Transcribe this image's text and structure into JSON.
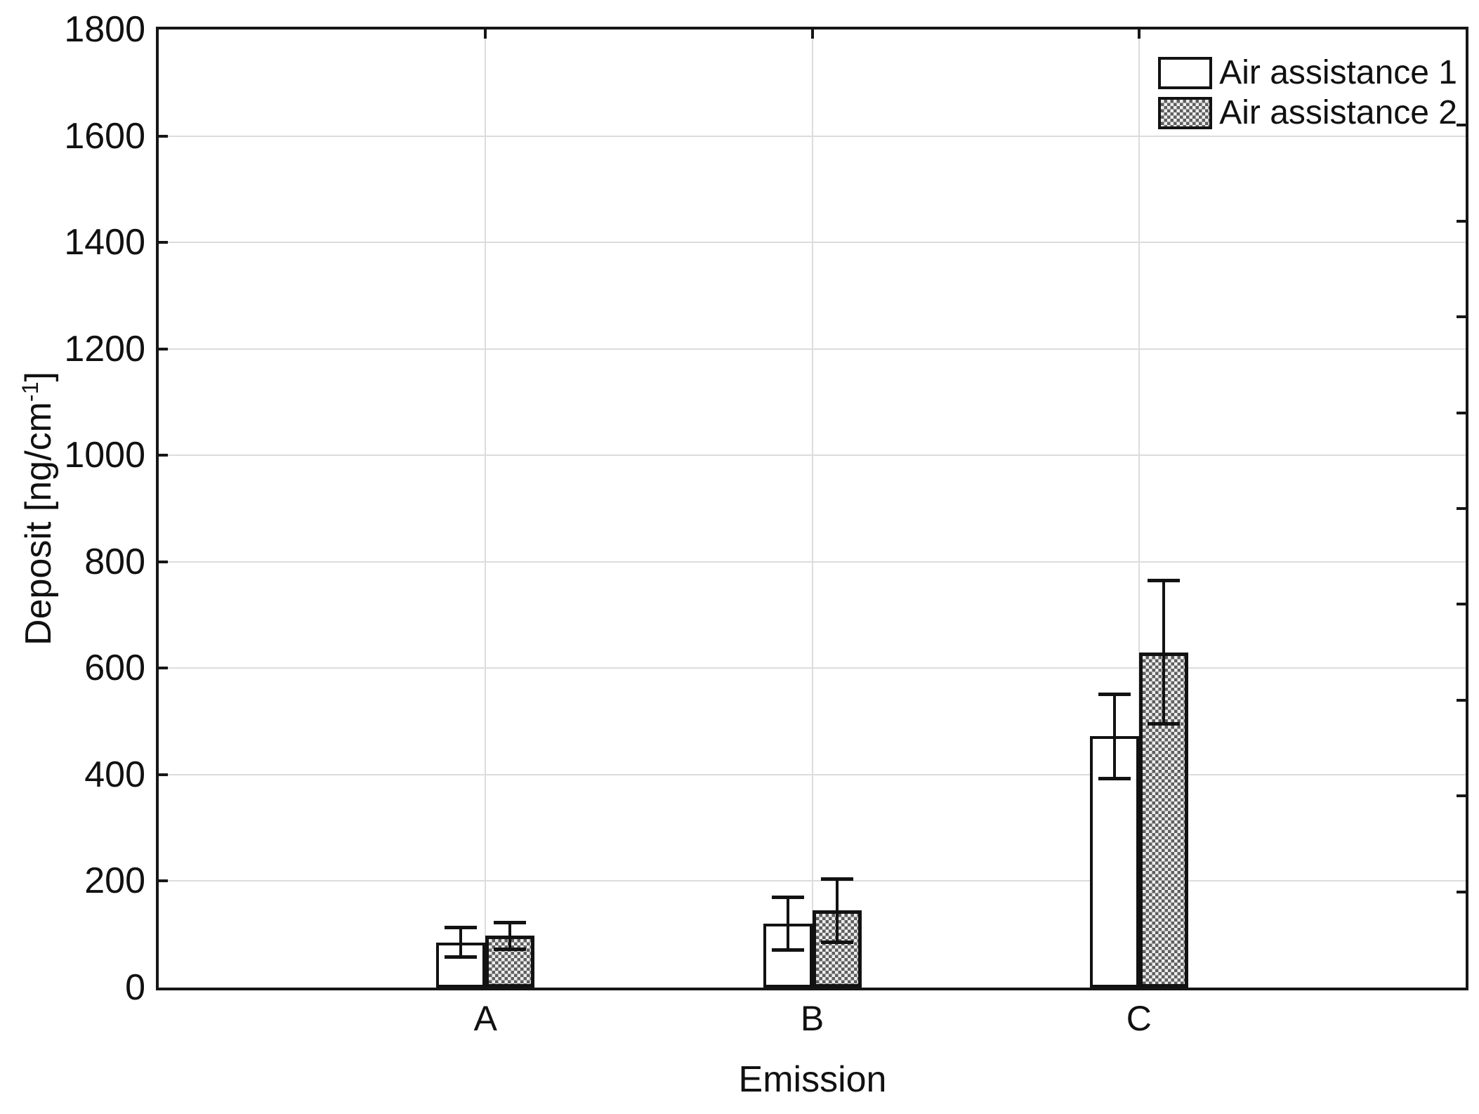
{
  "chart_data": {
    "type": "bar",
    "title": "",
    "categories": [
      "A",
      "B",
      "C"
    ],
    "series": [
      {
        "name": "Air assistance 1",
        "fill": "white",
        "values": [
          85,
          120,
          472
        ],
        "err_low": [
          57,
          70,
          392
        ],
        "err_high": [
          113,
          170,
          552
        ]
      },
      {
        "name": "Air assistance 2",
        "fill": "dotted-hatch-gray",
        "values": [
          97,
          145,
          630
        ],
        "err_low": [
          71,
          85,
          495
        ],
        "err_high": [
          123,
          205,
          765
        ]
      }
    ],
    "xlabel": "Emission",
    "ylabel": "Deposit [ng/cm⁻¹]",
    "ylabel_parts": {
      "prefix": "Deposit [ng/cm",
      "superscript": "-1",
      "suffix": "]"
    },
    "ylim": [
      0,
      1800
    ],
    "yticks": [
      0,
      200,
      400,
      600,
      800,
      1000,
      1200,
      1400,
      1600,
      1800
    ],
    "grid": {
      "horizontal_major": true,
      "vertical_at_category_centers": true
    },
    "legend_position": "top-right-inside",
    "right_axis": {
      "tick_divisions": 10,
      "labeled": false
    },
    "error_bars": "caps top and bottom, black"
  },
  "colors": {
    "background": "#ffffff",
    "axis": "#161616",
    "gridline": "#dcdcdc",
    "text": "#111111",
    "bar_border": "#121212",
    "bar_fill_series1": "#ffffff",
    "hatch_dark": "#5f5f5f",
    "hatch_light": "#ededed"
  }
}
